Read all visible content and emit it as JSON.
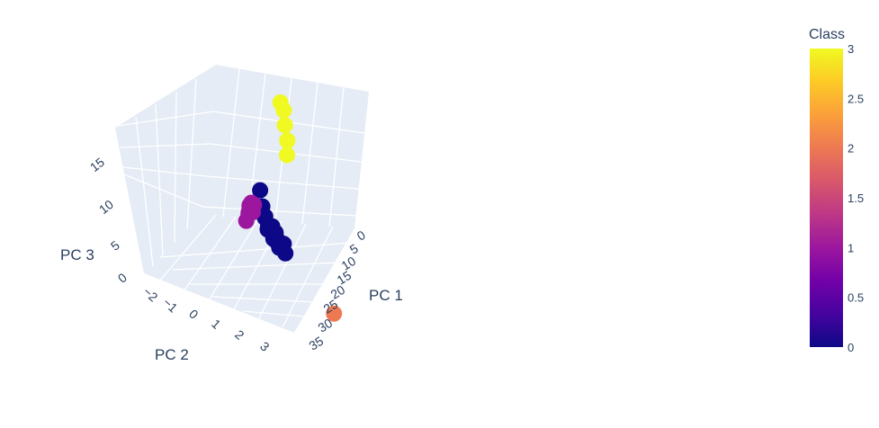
{
  "chart_data": {
    "type": "scatter",
    "dimension": "3d",
    "axes": {
      "x": {
        "title": "PC 1",
        "ticks": [
          "0",
          "5",
          "10",
          "15",
          "20",
          "25",
          "30",
          "35"
        ]
      },
      "y": {
        "title": "PC 2",
        "ticks": [
          "−2",
          "−1",
          "0",
          "1",
          "2",
          "3"
        ]
      },
      "z": {
        "title": "PC 3",
        "ticks": [
          "0",
          "5",
          "10",
          "15"
        ]
      }
    },
    "colorbar": {
      "title": "Class",
      "range": [
        0,
        3
      ],
      "ticks": [
        "0",
        "0.5",
        "1",
        "1.5",
        "2",
        "2.5",
        "3"
      ],
      "colorscale": [
        "#0d0887",
        "#46039f",
        "#7201a8",
        "#9c179e",
        "#bd3786",
        "#d8576b",
        "#ed7953",
        "#fb9f3a",
        "#fdca26",
        "#f0f921"
      ]
    },
    "points": [
      {
        "class": 3,
        "pc1": 2,
        "pc2": 2.9,
        "pc3": 17
      },
      {
        "class": 3,
        "pc1": 3,
        "pc2": 3.0,
        "pc3": 16.5
      },
      {
        "class": 3,
        "pc1": 4,
        "pc2": 3.0,
        "pc3": 15
      },
      {
        "class": 3,
        "pc1": 5,
        "pc2": 3.1,
        "pc3": 13.5
      },
      {
        "class": 3,
        "pc1": 6,
        "pc2": 3.0,
        "pc3": 12
      },
      {
        "class": 2,
        "pc1": 34,
        "pc2": 2.2,
        "pc3": 3
      },
      {
        "class": 0,
        "pc1": 5,
        "pc2": 1.5,
        "pc3": 6
      },
      {
        "class": 0,
        "pc1": 8,
        "pc2": 1.2,
        "pc3": 5
      },
      {
        "class": 0,
        "pc1": 9,
        "pc2": 1.0,
        "pc3": 4.8
      },
      {
        "class": 0,
        "pc1": 10,
        "pc2": 1.1,
        "pc3": 4.5
      },
      {
        "class": 0,
        "pc1": 11,
        "pc2": 0.9,
        "pc3": 4.6
      },
      {
        "class": 0,
        "pc1": 12,
        "pc2": 1.3,
        "pc3": 4.2
      },
      {
        "class": 0,
        "pc1": 12,
        "pc2": 1.0,
        "pc3": 4.0
      },
      {
        "class": 0,
        "pc1": 13,
        "pc2": 0.8,
        "pc3": 4.1
      },
      {
        "class": 0,
        "pc1": 13,
        "pc2": 1.4,
        "pc3": 3.9
      },
      {
        "class": 0,
        "pc1": 14,
        "pc2": 1.0,
        "pc3": 3.8
      },
      {
        "class": 0,
        "pc1": 14,
        "pc2": 0.6,
        "pc3": 4.2
      },
      {
        "class": 0,
        "pc1": 15,
        "pc2": 1.2,
        "pc3": 3.7
      },
      {
        "class": 0,
        "pc1": 15,
        "pc2": 0.9,
        "pc3": 3.6
      },
      {
        "class": 0,
        "pc1": 16,
        "pc2": 1.1,
        "pc3": 3.5
      },
      {
        "class": 0,
        "pc1": 16,
        "pc2": 1.5,
        "pc3": 3.8
      },
      {
        "class": 0,
        "pc1": 17,
        "pc2": 1.0,
        "pc3": 3.4
      },
      {
        "class": 0,
        "pc1": 18,
        "pc2": 1.3,
        "pc3": 3.3
      },
      {
        "class": 1,
        "pc1": 12,
        "pc2": -0.2,
        "pc3": 6
      },
      {
        "class": 1,
        "pc1": 13,
        "pc2": -0.4,
        "pc3": 6.2
      },
      {
        "class": 1,
        "pc1": 14,
        "pc2": -0.6,
        "pc3": 6.5
      },
      {
        "class": 1,
        "pc1": 14,
        "pc2": -0.8,
        "pc3": 6.7
      },
      {
        "class": 1,
        "pc1": 15,
        "pc2": -0.9,
        "pc3": 6.9
      },
      {
        "class": 1,
        "pc1": 15,
        "pc2": -1.1,
        "pc3": 6.6
      },
      {
        "class": 1,
        "pc1": 16,
        "pc2": -1.0,
        "pc3": 7.0
      },
      {
        "class": 1,
        "pc1": 16,
        "pc2": -1.3,
        "pc3": 6.8
      },
      {
        "class": 1,
        "pc1": 17,
        "pc2": -1.2,
        "pc3": 6.5
      },
      {
        "class": 1,
        "pc1": 17,
        "pc2": -1.5,
        "pc3": 6.3
      },
      {
        "class": 1,
        "pc1": 18,
        "pc2": -1.7,
        "pc3": 6.4
      },
      {
        "class": 1,
        "pc1": 20,
        "pc2": -2.2,
        "pc3": 6.0
      }
    ]
  }
}
